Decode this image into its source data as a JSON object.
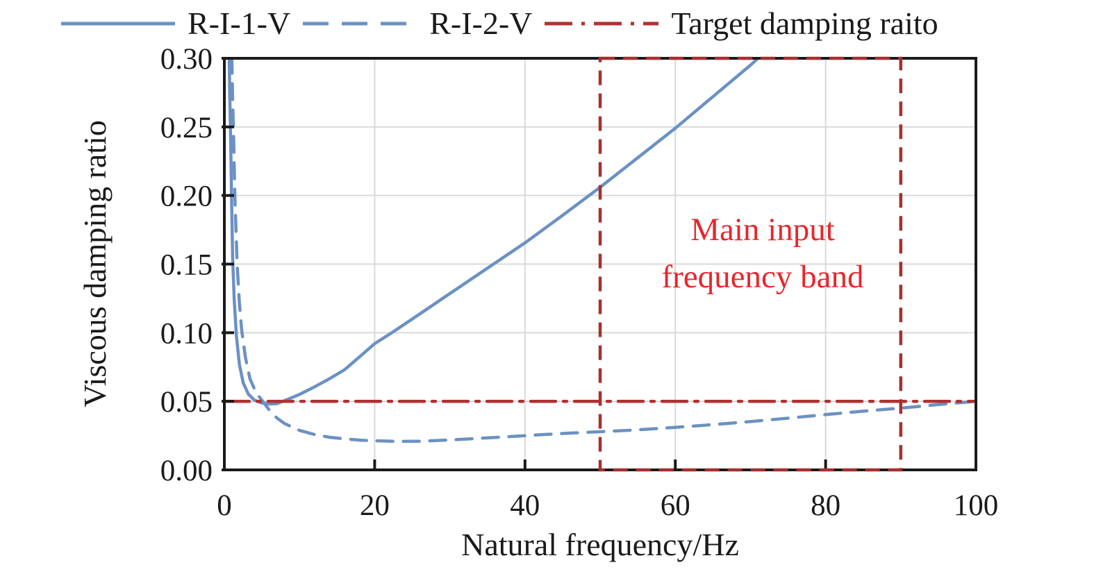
{
  "legend": {
    "items": [
      {
        "label": "R-I-1-V",
        "style": "solid",
        "color": "#6b91c3"
      },
      {
        "label": "R-I-2-V",
        "style": "dashed",
        "color": "#6b91c3"
      },
      {
        "label": "Target damping raito",
        "style": "dashdot",
        "color": "#b23032"
      }
    ]
  },
  "annotation": {
    "line1": "Main input",
    "line2": "frequency band",
    "color": "#e8262c"
  },
  "colors": {
    "curve_blue": "#6b91c3",
    "target_red": "#b23032",
    "band_red": "#a62f2e",
    "annotation_red": "#e8262c",
    "grid": "#d9d9d9",
    "axis": "#1a1a1a"
  },
  "chart_data": {
    "type": "line",
    "title": "",
    "xlabel": "Natural frequency/Hz",
    "ylabel": "Viscous damping ratio",
    "xlim": [
      0,
      100
    ],
    "ylim": [
      0,
      0.3
    ],
    "xticks": [
      0,
      20,
      40,
      60,
      80,
      100
    ],
    "xtick_labels": [
      "0",
      "20",
      "40",
      "60",
      "80",
      "100"
    ],
    "yticks": [
      0,
      0.05,
      0.1,
      0.15,
      0.2,
      0.25,
      0.3
    ],
    "ytick_labels": [
      "0.00",
      "0.05",
      "0.10",
      "0.15",
      "0.20",
      "0.25",
      "0.30"
    ],
    "grid": true,
    "legend_position": "top",
    "series": [
      {
        "name": "R-I-1-V",
        "style": "solid",
        "color": "#6b91c3",
        "points": [
          [
            0.6,
            0.32
          ],
          [
            0.65,
            0.3
          ],
          [
            0.7,
            0.28
          ],
          [
            0.8,
            0.25
          ],
          [
            0.9,
            0.222
          ],
          [
            0.95,
            0.2
          ],
          [
            1.1,
            0.155
          ],
          [
            1.3,
            0.125
          ],
          [
            1.6,
            0.098
          ],
          [
            2.0,
            0.077
          ],
          [
            2.5,
            0.0635
          ],
          [
            3.2,
            0.0552
          ],
          [
            4.0,
            0.0508
          ],
          [
            5.0,
            0.0487
          ],
          [
            6.0,
            0.048
          ],
          [
            7.0,
            0.0483
          ],
          [
            8.0,
            0.0505
          ],
          [
            10.0,
            0.055
          ],
          [
            12.0,
            0.0605
          ],
          [
            14.0,
            0.0665
          ],
          [
            16.0,
            0.073
          ],
          [
            18.0,
            0.0825
          ],
          [
            20.0,
            0.092
          ],
          [
            22.3,
            0.1
          ],
          [
            25.0,
            0.11
          ],
          [
            30.0,
            0.1285
          ],
          [
            35.0,
            0.147
          ],
          [
            40.0,
            0.1655
          ],
          [
            45.0,
            0.1855
          ],
          [
            50.0,
            0.206
          ],
          [
            55.0,
            0.2275
          ],
          [
            60.0,
            0.249
          ],
          [
            65.0,
            0.272
          ],
          [
            70.0,
            0.295
          ],
          [
            72.0,
            0.305
          ]
        ]
      },
      {
        "name": "R-I-2-V",
        "style": "dashed",
        "color": "#6b91c3",
        "points": [
          [
            0.95,
            0.32
          ],
          [
            1.0,
            0.3
          ],
          [
            1.1,
            0.27
          ],
          [
            1.2,
            0.25
          ],
          [
            1.4,
            0.2
          ],
          [
            1.7,
            0.15
          ],
          [
            2.0,
            0.122
          ],
          [
            2.3,
            0.102
          ],
          [
            2.8,
            0.082
          ],
          [
            3.4,
            0.0665
          ],
          [
            4.2,
            0.0565
          ],
          [
            5.1,
            0.05
          ],
          [
            6.0,
            0.0435
          ],
          [
            7.0,
            0.0378
          ],
          [
            8.0,
            0.0338
          ],
          [
            10.0,
            0.0288
          ],
          [
            12.0,
            0.0258
          ],
          [
            14.0,
            0.0238
          ],
          [
            16.0,
            0.0226
          ],
          [
            18.0,
            0.0217
          ],
          [
            20.0,
            0.0212
          ],
          [
            23.0,
            0.0208
          ],
          [
            26.0,
            0.0209
          ],
          [
            30.0,
            0.0218
          ],
          [
            34.0,
            0.023
          ],
          [
            38.0,
            0.0243
          ],
          [
            42.0,
            0.0256
          ],
          [
            46.0,
            0.0268
          ],
          [
            50.0,
            0.0278
          ],
          [
            55.0,
            0.0292
          ],
          [
            60.0,
            0.031
          ],
          [
            65.0,
            0.033
          ],
          [
            70.0,
            0.0352
          ],
          [
            75.0,
            0.0377
          ],
          [
            80.0,
            0.0403
          ],
          [
            85.0,
            0.0428
          ],
          [
            90.0,
            0.045
          ],
          [
            95.0,
            0.0476
          ],
          [
            100.0,
            0.05
          ]
        ]
      },
      {
        "name": "Target damping raito",
        "style": "dashdot",
        "color": "#b23032",
        "points": [
          [
            0,
            0.05
          ],
          [
            100,
            0.05
          ]
        ]
      }
    ],
    "annotations": [
      {
        "type": "band-rect",
        "x0": 50,
        "x1": 90,
        "y0": 0,
        "y1": 0.3,
        "color": "#a62f2e",
        "label": "Main input frequency band",
        "label_color": "#e8262c",
        "label_x": 70,
        "label_y": 0.16
      }
    ]
  }
}
